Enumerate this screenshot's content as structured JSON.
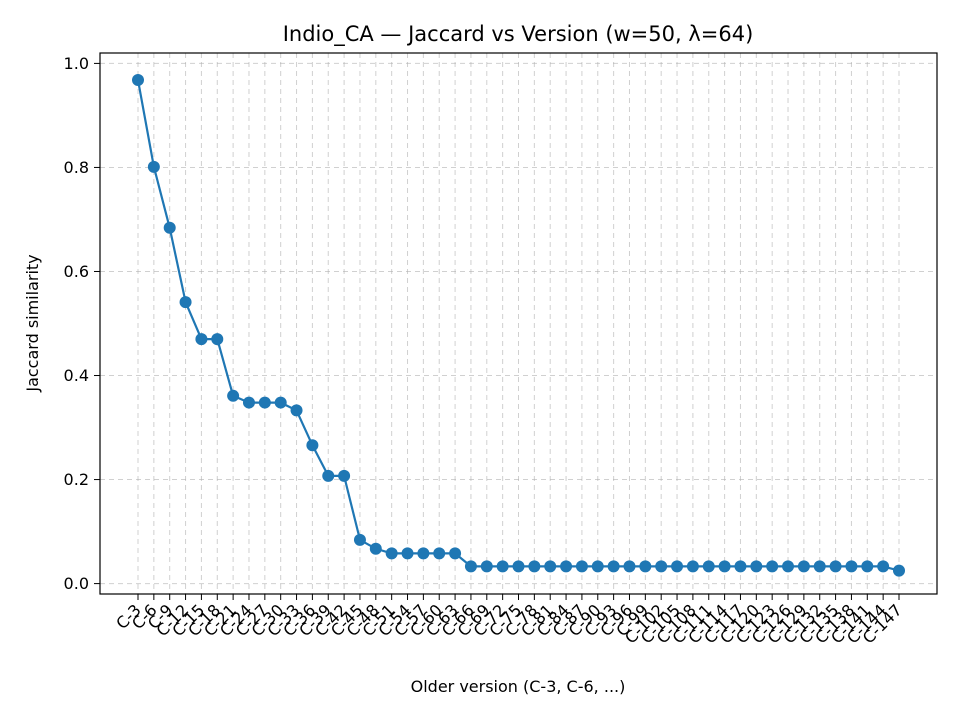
{
  "chart_data": {
    "type": "line",
    "title": "Indio_CA — Jaccard vs Version (w=50, λ=64)",
    "xlabel": "Older version (C-3, C-6, ...)",
    "ylabel": "Jaccard similarity",
    "ylim": [
      -0.02,
      1.02
    ],
    "yticks": [
      "0.0",
      "0.2",
      "0.4",
      "0.6",
      "0.8",
      "1.0"
    ],
    "grid": true,
    "color": "#1f77b4",
    "categories": [
      "C-3",
      "C-6",
      "C-9",
      "C-12",
      "C-15",
      "C-18",
      "C-21",
      "C-24",
      "C-27",
      "C-30",
      "C-33",
      "C-36",
      "C-39",
      "C-42",
      "C-45",
      "C-48",
      "C-51",
      "C-54",
      "C-57",
      "C-60",
      "C-63",
      "C-66",
      "C-69",
      "C-72",
      "C-75",
      "C-78",
      "C-81",
      "C-84",
      "C-87",
      "C-90",
      "C-93",
      "C-96",
      "C-99",
      "C-102",
      "C-105",
      "C-108",
      "C-111",
      "C-114",
      "C-117",
      "C-120",
      "C-123",
      "C-126",
      "C-129",
      "C-132",
      "C-135",
      "C-138",
      "C-141",
      "C-144",
      "C-147"
    ],
    "values": [
      0.968,
      0.801,
      0.684,
      0.541,
      0.47,
      0.47,
      0.361,
      0.348,
      0.348,
      0.348,
      0.333,
      0.266,
      0.207,
      0.207,
      0.084,
      0.067,
      0.058,
      0.058,
      0.058,
      0.058,
      0.058,
      0.033,
      0.033,
      0.033,
      0.033,
      0.033,
      0.033,
      0.033,
      0.033,
      0.033,
      0.033,
      0.033,
      0.033,
      0.033,
      0.033,
      0.033,
      0.033,
      0.033,
      0.033,
      0.033,
      0.033,
      0.033,
      0.033,
      0.033,
      0.033,
      0.033,
      0.033,
      0.033,
      0.025
    ]
  }
}
